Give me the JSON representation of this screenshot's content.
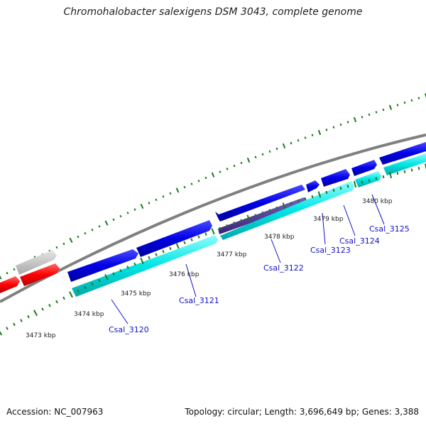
{
  "title": "Chromohalobacter salexigens DSM 3043, complete genome",
  "footer": {
    "accession": "Accession: NC_007963",
    "summary": "Topology: circular; Length: 3,696,649 bp; Genes: 3,388"
  },
  "kbp_labels": [
    "3473 kbp",
    "3474 kbp",
    "3475 kbp",
    "3476 kbp",
    "3477 kbp",
    "3478 kbp",
    "3479 kbp",
    "3480 kbp"
  ],
  "gene_labels": [
    "Csal_3120",
    "Csal_3121",
    "Csal_3122",
    "Csal_3123",
    "Csal_3124",
    "Csal_3125"
  ],
  "colors": {
    "backbone": "#808080",
    "forward_gene": "#0000e6",
    "reverse_gene": "#00e5e5",
    "highlight_gene": "#4b2e96",
    "other_gene": "#ff0000",
    "other_feature": "#c0c0c0",
    "tick": "#1a7a1a",
    "label": "#1010cc"
  }
}
